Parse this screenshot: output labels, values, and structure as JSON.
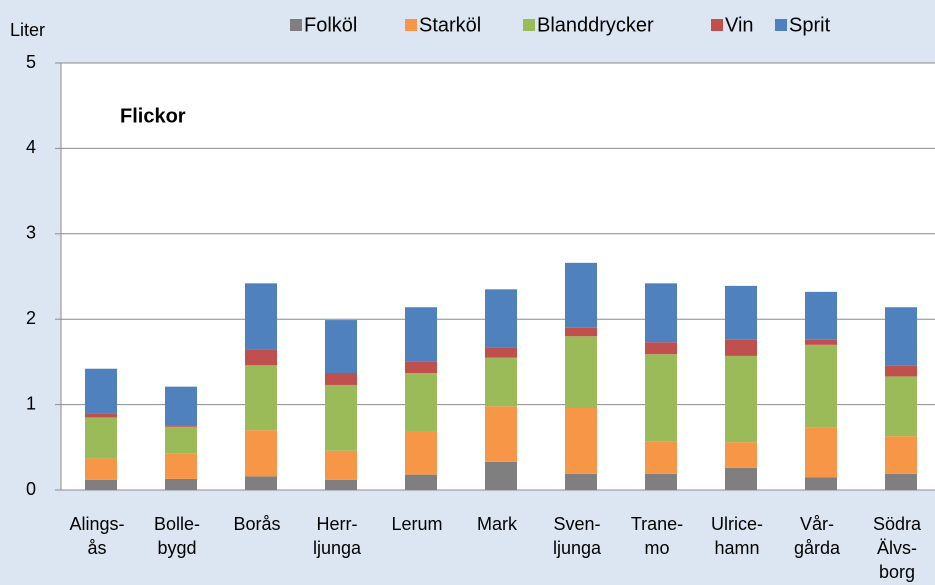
{
  "chart_data": {
    "type": "stacked_bar",
    "y_label": "Liter",
    "annotation": "Flickor",
    "categories": [
      [
        "Alings-",
        "ås"
      ],
      [
        "Bolle-",
        "bygd"
      ],
      [
        "Borås"
      ],
      [
        "Herr-",
        "ljunga"
      ],
      [
        "Lerum"
      ],
      [
        "Mark"
      ],
      [
        "Sven-",
        "ljunga"
      ],
      [
        "Trane-",
        "mo"
      ],
      [
        "Ulrice-",
        "hamn"
      ],
      [
        "Vår-",
        "gårda"
      ],
      [
        "Södra",
        "Älvs-",
        "borg"
      ]
    ],
    "series": [
      {
        "name": "Folköl",
        "color": "#7f7f7f",
        "values": [
          0.12,
          0.13,
          0.16,
          0.12,
          0.18,
          0.33,
          0.19,
          0.19,
          0.26,
          0.15,
          0.19
        ]
      },
      {
        "name": "Starköl",
        "color": "#f79646",
        "values": [
          0.25,
          0.3,
          0.54,
          0.34,
          0.5,
          0.65,
          0.77,
          0.38,
          0.3,
          0.58,
          0.44
        ]
      },
      {
        "name": "Blanddrycker",
        "color": "#9bbb59",
        "values": [
          0.48,
          0.31,
          0.76,
          0.77,
          0.69,
          0.57,
          0.84,
          1.02,
          1.01,
          0.97,
          0.7
        ]
      },
      {
        "name": "Vin",
        "color": "#c0504d",
        "values": [
          0.05,
          0.02,
          0.18,
          0.14,
          0.13,
          0.12,
          0.1,
          0.14,
          0.19,
          0.06,
          0.13
        ]
      },
      {
        "name": "Sprit",
        "color": "#4f81bd",
        "values": [
          0.52,
          0.45,
          0.78,
          0.62,
          0.64,
          0.68,
          0.76,
          0.69,
          0.63,
          0.56,
          0.68
        ]
      }
    ],
    "ylim": [
      0,
      5
    ],
    "yticks": [
      0,
      1,
      2,
      3,
      4,
      5
    ],
    "grid": true
  }
}
